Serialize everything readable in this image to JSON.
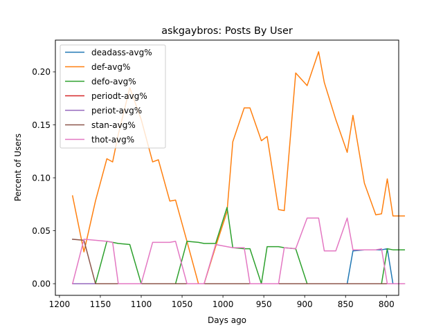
{
  "chart_data": {
    "type": "line",
    "title": "askgaybros: Posts By User",
    "xlabel": "Days ago",
    "ylabel": "Percent of Users",
    "x_inverted": true,
    "xlim": [
      1205,
      785
    ],
    "ylim": [
      -0.011,
      0.23
    ],
    "xticks": [
      1200,
      1150,
      1100,
      1050,
      1000,
      950,
      900,
      850,
      800
    ],
    "yticks": [
      0.0,
      0.05,
      0.1,
      0.15,
      0.2
    ],
    "ytick_labels": [
      "0.00",
      "0.05",
      "0.10",
      "0.15",
      "0.20"
    ],
    "legend_position": "upper-left",
    "grid": false,
    "x": [
      1184,
      1170,
      1156,
      1142,
      1135,
      1128,
      1114,
      1100,
      1086,
      1079,
      1065,
      1058,
      1044,
      1030,
      1023,
      1009,
      995,
      988,
      974,
      967,
      953,
      946,
      932,
      925,
      911,
      897,
      883,
      876,
      862,
      848,
      841,
      827,
      813,
      806,
      799,
      792,
      778
    ],
    "series": [
      {
        "name": "deadass-avg%",
        "color": "#1f77b4",
        "values": [
          0,
          0,
          0,
          0,
          0,
          0,
          0,
          0,
          0,
          0,
          0,
          0,
          0,
          0,
          0,
          0,
          0,
          0,
          0,
          0,
          0,
          0,
          0,
          0,
          0,
          0,
          0,
          0,
          0,
          0,
          0.031,
          0.032,
          0.032,
          0.032,
          0.033,
          0,
          0
        ]
      },
      {
        "name": "def-avg%",
        "color": "#ff7f0e",
        "values": [
          0.083,
          0.03,
          0.078,
          0.118,
          0.115,
          0.141,
          0.185,
          0.155,
          0.115,
          0.117,
          0.078,
          0.079,
          0.04,
          0,
          0,
          0.035,
          0.068,
          0.134,
          0.166,
          0.166,
          0.135,
          0.139,
          0.07,
          0.069,
          0.199,
          0.187,
          0.219,
          0.19,
          0.155,
          0.124,
          0.159,
          0.095,
          0.065,
          0.066,
          0.099,
          0.064,
          0.064
        ]
      },
      {
        "name": "defo-avg%",
        "color": "#2ca02c",
        "values": [
          0,
          0,
          0,
          0.04,
          0.039,
          0.038,
          0.037,
          0,
          0,
          0,
          0,
          0,
          0.04,
          0.039,
          0.038,
          0.038,
          0.072,
          0.034,
          0.033,
          0.033,
          0,
          0.035,
          0.035,
          0.034,
          0.033,
          0,
          0,
          0,
          0,
          0,
          0,
          0,
          0,
          0,
          0.033,
          0.032,
          0.032
        ]
      },
      {
        "name": "periodt-avg%",
        "color": "#d62728",
        "values": [
          0,
          0,
          0,
          0,
          0,
          0,
          0,
          0,
          0,
          0,
          0,
          0,
          0,
          0,
          0,
          0,
          0,
          0,
          0,
          0,
          0,
          0,
          0,
          0,
          0,
          0,
          0,
          0,
          0,
          0,
          0,
          0,
          0,
          0,
          0,
          0,
          0
        ]
      },
      {
        "name": "periot-avg%",
        "color": "#9467bd",
        "values": [
          0,
          0,
          0,
          0,
          0,
          0,
          0,
          0,
          0,
          0,
          0,
          0,
          0,
          0,
          0,
          0,
          0,
          0,
          0,
          0,
          0,
          0,
          0,
          0,
          0,
          0,
          0,
          0,
          0,
          0,
          0,
          0,
          0,
          0,
          0,
          0,
          0
        ]
      },
      {
        "name": "stan-avg%",
        "color": "#8c564b",
        "values": [
          0.042,
          0.041,
          0,
          0,
          0,
          0,
          0,
          0,
          0,
          0,
          0,
          0,
          0,
          0,
          0,
          0,
          0,
          0,
          0,
          0,
          0,
          0,
          0,
          0,
          0,
          0,
          0,
          0,
          0,
          0,
          0,
          0,
          0,
          0,
          0,
          0,
          0
        ]
      },
      {
        "name": "thot-avg%",
        "color": "#e377c2",
        "values": [
          0,
          0.042,
          0.041,
          0.04,
          0.039,
          0,
          0,
          0,
          0.039,
          0.039,
          0.039,
          0.04,
          0,
          0,
          0,
          0.037,
          0.035,
          0.034,
          0.034,
          0,
          0,
          0,
          0,
          0.034,
          0.033,
          0.062,
          0.062,
          0.031,
          0.031,
          0.062,
          0.032,
          0.032,
          0.032,
          0.033,
          0,
          0,
          0
        ]
      }
    ]
  }
}
